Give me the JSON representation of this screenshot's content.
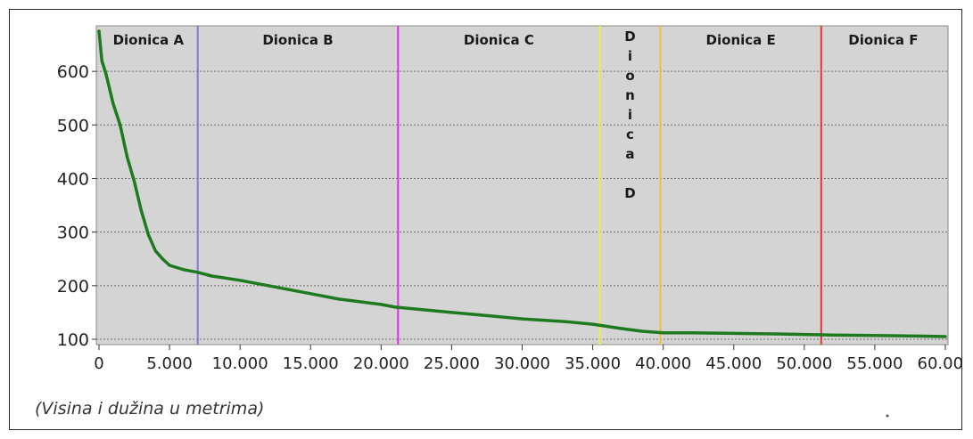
{
  "chart_data": {
    "type": "line",
    "title": "",
    "xlabel": "",
    "ylabel": "",
    "caption": "(Visina i dužina u metrima)",
    "xlim": [
      0,
      60000
    ],
    "ylim": [
      90,
      685
    ],
    "yticks": [
      100,
      200,
      300,
      400,
      500,
      600
    ],
    "ytick_labels": [
      "100",
      "200",
      "300",
      "400",
      "500",
      "600"
    ],
    "xticks": [
      0,
      5000,
      10000,
      15000,
      20000,
      25000,
      30000,
      35000,
      40000,
      45000,
      50000,
      55000,
      60000
    ],
    "xtick_labels": [
      "0",
      "5.000",
      "10.000",
      "15.000",
      "20.000",
      "25.000",
      "30.000",
      "35.000",
      "40.000",
      "45.000",
      "50.000",
      "55.000",
      "60.000"
    ],
    "grid": "horizontal-dotted",
    "series": [
      {
        "color": "#1f7a1f",
        "x": [
          0,
          200,
          500,
          1000,
          1500,
          2000,
          2500,
          3000,
          3500,
          4000,
          4500,
          5000,
          6000,
          7000,
          8000,
          10000,
          12000,
          13000,
          15000,
          17000,
          20000,
          21000,
          23000,
          25000,
          28000,
          30000,
          33000,
          35000,
          37000,
          38500,
          40000,
          42000,
          45000,
          48000,
          50000,
          52000,
          55000,
          58000,
          60000
        ],
        "y": [
          675,
          620,
          595,
          540,
          500,
          440,
          395,
          340,
          295,
          265,
          250,
          238,
          230,
          225,
          218,
          210,
          200,
          195,
          185,
          175,
          165,
          160,
          155,
          150,
          143,
          138,
          133,
          128,
          120,
          115,
          112,
          112,
          111,
          110,
          109,
          108,
          107,
          106,
          105
        ]
      }
    ],
    "segments": [
      {
        "label": "Dionica A",
        "x_end": 7000,
        "line_color": "#8877cc"
      },
      {
        "label": "Dionica B",
        "x_end": 21200,
        "line_color": "#dd33dd"
      },
      {
        "label": "Dionica C",
        "x_end": 35500,
        "line_color": "#eeee44"
      },
      {
        "label": "D i o n i c a D",
        "vertical": [
          "D",
          "i",
          "o",
          "n",
          "i",
          "c",
          "a",
          "",
          "D"
        ],
        "x_end": 39800,
        "line_color": "#f0c030"
      },
      {
        "label": "Dionica E",
        "x_end": 51200,
        "line_color": "#ee3333"
      },
      {
        "label": "Dionica F",
        "x_end": 60000,
        "line_color": null
      }
    ]
  }
}
